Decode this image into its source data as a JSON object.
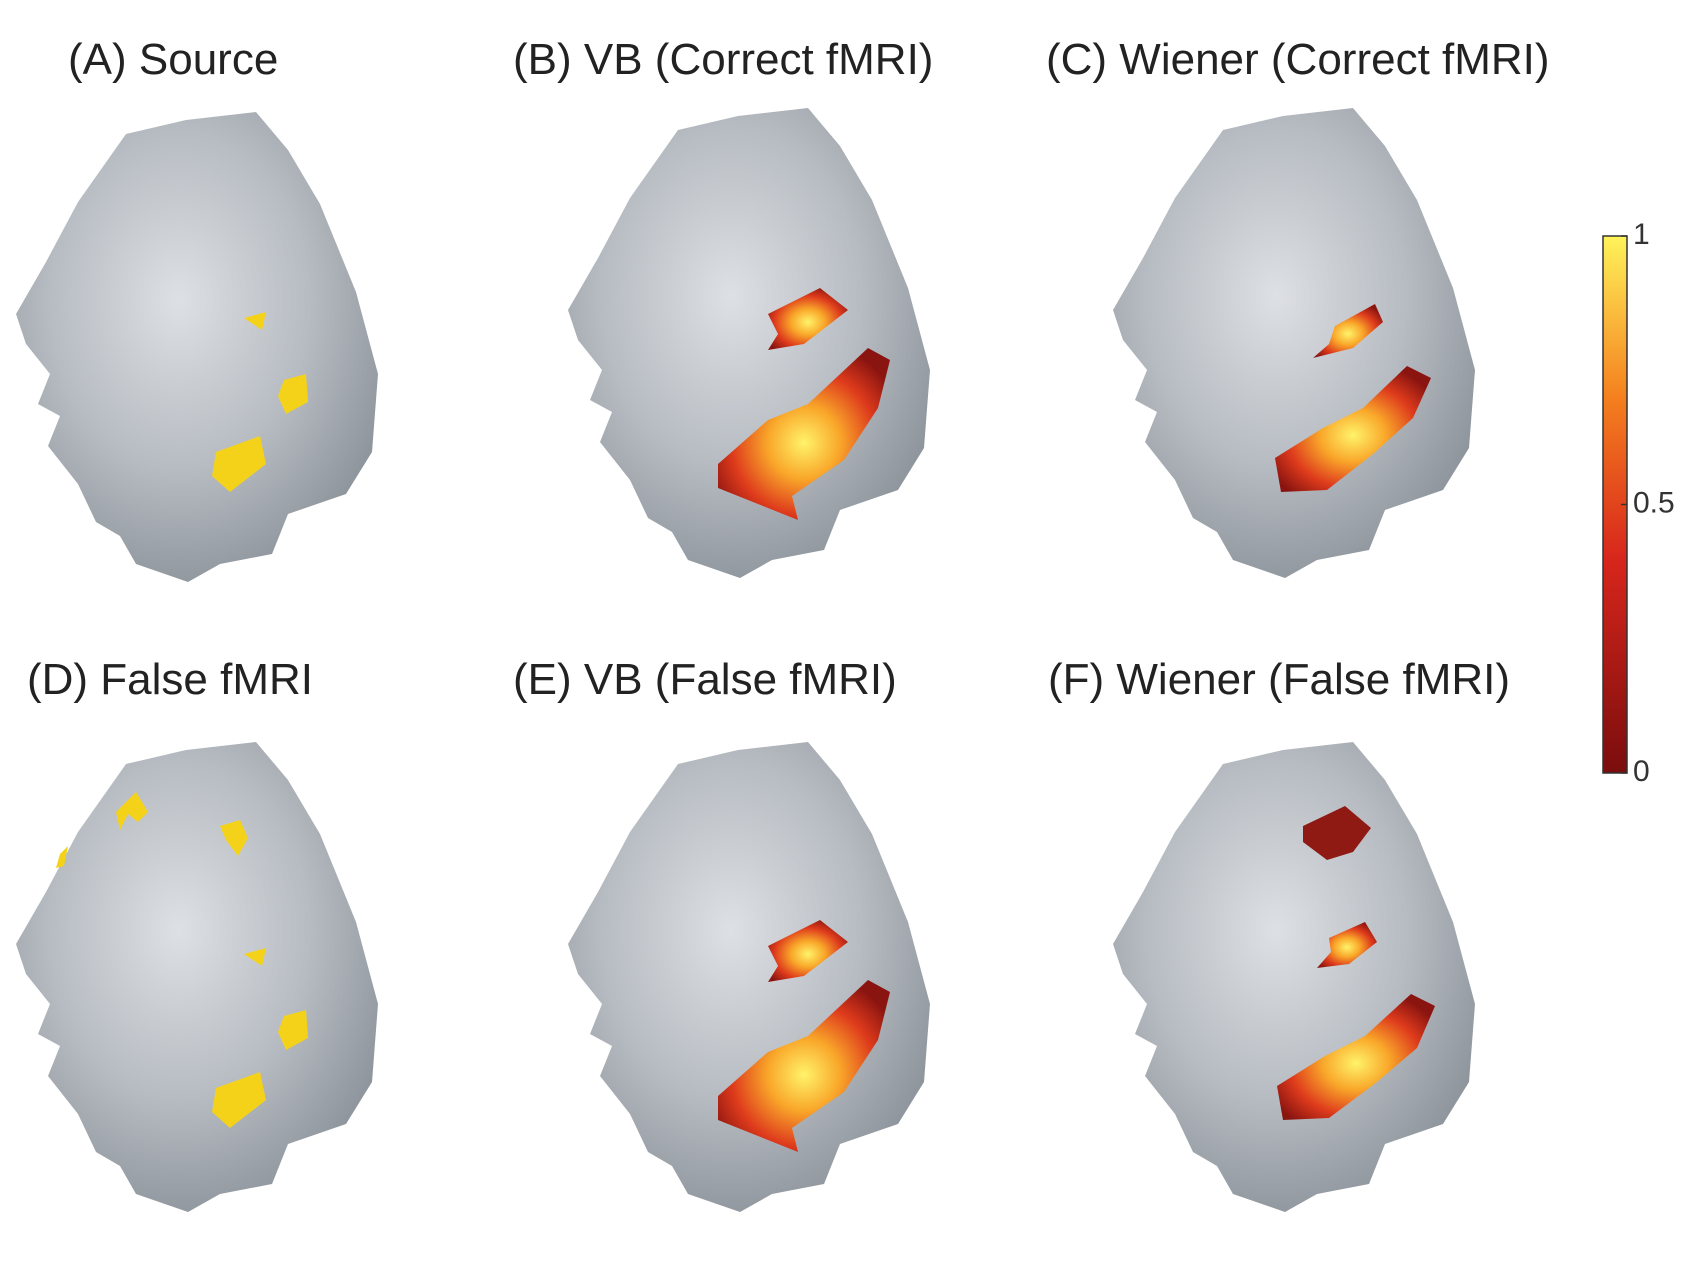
{
  "panels": [
    {
      "title": "(A) Source"
    },
    {
      "title": "(B) VB (Correct fMRI)"
    },
    {
      "title": "(C) Wiener (Correct fMRI)"
    },
    {
      "title": "(D) False fMRI"
    },
    {
      "title": "(E) VB (False fMRI)"
    },
    {
      "title": "(F) Wiener (False fMRI)"
    }
  ],
  "colorbar": {
    "lim": [
      0,
      1
    ],
    "ticks": [
      0,
      0.5,
      1
    ]
  }
}
